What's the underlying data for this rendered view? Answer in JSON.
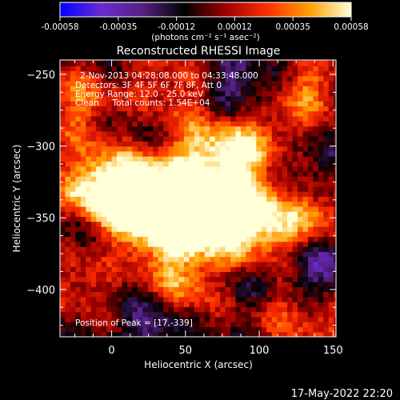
{
  "chart_data": {
    "type": "heatmap",
    "title": "Reconstructed RHESSI Image",
    "xlabel": "Heliocentric X (arcsec)",
    "ylabel": "Heliocentric Y (arcsec)",
    "xlim": [
      -35,
      152
    ],
    "ylim": [
      -433,
      -240
    ],
    "x_ticks": [
      0,
      50,
      100,
      150
    ],
    "y_ticks": [
      -250,
      -300,
      -350,
      -400
    ],
    "grid": false,
    "colorbar": {
      "range": [
        -0.00058,
        0.00058
      ],
      "ticks": [
        "-0.00058",
        "-0.00035",
        "-0.00012",
        "0.00012",
        "0.00035",
        "0.00058"
      ],
      "label": "(photons cm⁻² s⁻¹ asec⁻²)",
      "stops": [
        "#0000ff",
        "#6a2cd0",
        "#552080",
        "#000000",
        "#a00000",
        "#ff3000",
        "#ffa000",
        "#ffffd8"
      ]
    },
    "annotations": [
      "2-Nov-2013 04:28:08.000 to 04:33:48.000",
      "Detectors: 3F 4F 5F 6F 7F 8F, Att 0",
      "Energy Range: 12.0 - 25.0 keV",
      "Clean     Total counts: 1.54E+04"
    ],
    "peak_label": "Position of Peak = [17,-339]",
    "blobs": [
      {
        "x": 20,
        "y": -345,
        "r": 26,
        "v": 0.00058
      },
      {
        "x": 62,
        "y": -352,
        "r": 30,
        "v": 0.0005
      },
      {
        "x": 88,
        "y": -346,
        "r": 22,
        "v": 0.00045
      },
      {
        "x": 10,
        "y": -330,
        "r": 30,
        "v": 0.00035
      },
      {
        "x": 110,
        "y": -355,
        "r": 24,
        "v": 0.00032
      },
      {
        "x": -10,
        "y": -332,
        "r": 16,
        "v": 0.0003
      },
      {
        "x": 72,
        "y": -300,
        "r": 20,
        "v": 0.00035
      },
      {
        "x": 100,
        "y": -295,
        "r": 16,
        "v": 0.0003
      },
      {
        "x": 132,
        "y": -262,
        "r": 16,
        "v": 0.00035
      },
      {
        "x": -22,
        "y": -270,
        "r": 16,
        "v": 0.0003
      },
      {
        "x": 35,
        "y": -260,
        "r": 18,
        "v": 0.00025
      },
      {
        "x": 50,
        "y": -402,
        "r": 16,
        "v": 0.00026
      },
      {
        "x": -18,
        "y": -392,
        "r": 16,
        "v": 0.0003
      },
      {
        "x": 140,
        "y": -420,
        "r": 18,
        "v": 0.00022
      },
      {
        "x": 110,
        "y": -415,
        "r": 14,
        "v": 0.00018
      },
      {
        "x": 140,
        "y": -345,
        "r": 14,
        "v": 0.00025
      },
      {
        "x": 0,
        "y": -372,
        "r": 20,
        "v": -0.00035
      },
      {
        "x": 90,
        "y": -385,
        "r": 22,
        "v": -0.0003
      },
      {
        "x": 120,
        "y": -322,
        "r": 18,
        "v": -0.00028
      },
      {
        "x": 20,
        "y": -292,
        "r": 18,
        "v": -0.00025
      },
      {
        "x": 88,
        "y": -262,
        "r": 16,
        "v": -0.0003
      },
      {
        "x": 140,
        "y": -385,
        "r": 16,
        "v": -0.00035
      },
      {
        "x": 30,
        "y": -425,
        "r": 16,
        "v": -0.0003
      },
      {
        "x": -25,
        "y": -355,
        "r": 12,
        "v": -0.0002
      }
    ]
  },
  "footer": {
    "date": "17-May-2022 22:20"
  }
}
